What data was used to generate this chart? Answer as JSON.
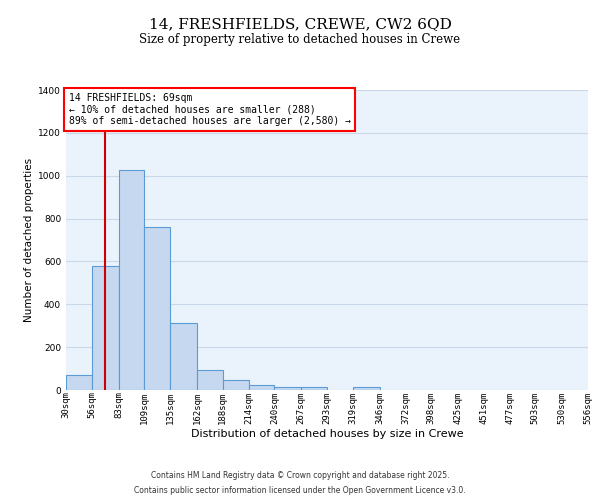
{
  "title_line1": "14, FRESHFIELDS, CREWE, CW2 6QD",
  "title_line2": "Size of property relative to detached houses in Crewe",
  "xlabel": "Distribution of detached houses by size in Crewe",
  "ylabel": "Number of detached properties",
  "footer_line1": "Contains HM Land Registry data © Crown copyright and database right 2025.",
  "footer_line2": "Contains public sector information licensed under the Open Government Licence v3.0.",
  "annotation_title": "14 FRESHFIELDS: 69sqm",
  "annotation_line2": "← 10% of detached houses are smaller (288)",
  "annotation_line3": "89% of semi-detached houses are larger (2,580) →",
  "bar_left_edges": [
    30,
    56,
    83,
    109,
    135,
    162,
    188,
    214,
    240,
    267,
    293,
    319,
    346,
    372,
    398,
    425,
    451,
    477,
    503,
    530
  ],
  "bar_widths": [
    26,
    27,
    26,
    26,
    27,
    26,
    26,
    26,
    27,
    26,
    26,
    27,
    26,
    26,
    27,
    26,
    26,
    26,
    27,
    26
  ],
  "bar_heights": [
    70,
    580,
    1025,
    760,
    315,
    95,
    45,
    25,
    15,
    15,
    0,
    15,
    0,
    0,
    0,
    0,
    0,
    0,
    0,
    0
  ],
  "bar_color": "#c5d8f0",
  "bar_edge_color": "#5b9bd5",
  "grid_color": "#c8d8e8",
  "background_color": "#eaf3fb",
  "vline_x": 69,
  "vline_color": "#cc0000",
  "ylim": [
    0,
    1400
  ],
  "xlim": [
    30,
    556
  ],
  "tick_labels": [
    "30sqm",
    "56sqm",
    "83sqm",
    "109sqm",
    "135sqm",
    "162sqm",
    "188sqm",
    "214sqm",
    "240sqm",
    "267sqm",
    "293sqm",
    "319sqm",
    "346sqm",
    "372sqm",
    "398sqm",
    "425sqm",
    "451sqm",
    "477sqm",
    "503sqm",
    "530sqm",
    "556sqm"
  ],
  "tick_positions": [
    30,
    56,
    83,
    109,
    135,
    162,
    188,
    214,
    240,
    267,
    293,
    319,
    346,
    372,
    398,
    425,
    451,
    477,
    503,
    530,
    556
  ],
  "title_fontsize": 11,
  "subtitle_fontsize": 8.5,
  "xlabel_fontsize": 8,
  "ylabel_fontsize": 7.5,
  "tick_fontsize": 6.5,
  "footer_fontsize": 5.5,
  "annot_fontsize": 7
}
